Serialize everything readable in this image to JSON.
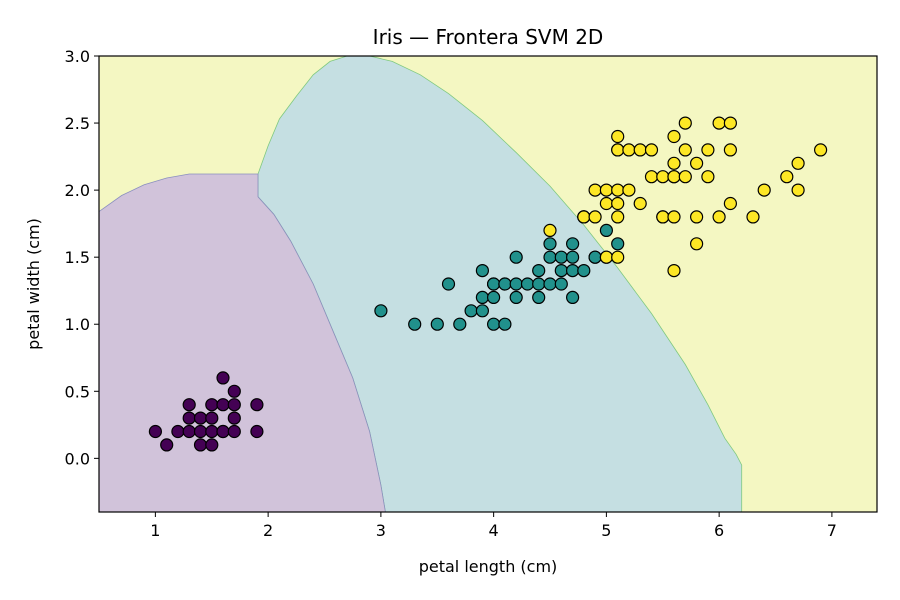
{
  "chart_data": {
    "type": "scatter",
    "title": "Iris — Frontera SVM 2D",
    "xlabel": "petal length (cm)",
    "ylabel": "petal width (cm)",
    "xlim": [
      0.5,
      7.4
    ],
    "ylim": [
      -0.4,
      3.0
    ],
    "xticks": [
      "1",
      "2",
      "3",
      "4",
      "5",
      "6",
      "7"
    ],
    "yticks": [
      "0.0",
      "0.5",
      "1.0",
      "1.5",
      "2.0",
      "2.5",
      "3.0"
    ],
    "grid": false,
    "legend": "none",
    "regions": [
      {
        "class": 0,
        "color": "#d1c3da"
      },
      {
        "class": 1,
        "color": "#c5dfe2"
      },
      {
        "class": 2,
        "color": "#f4f7c2"
      }
    ],
    "series": [
      {
        "class": 0,
        "color": "#440154",
        "x": [
          1.0,
          1.1,
          1.2,
          1.3,
          1.3,
          1.3,
          1.4,
          1.4,
          1.4,
          1.5,
          1.5,
          1.5,
          1.5,
          1.6,
          1.6,
          1.6,
          1.6,
          1.7,
          1.7,
          1.7,
          1.7,
          1.9,
          1.9
        ],
        "y": [
          0.2,
          0.1,
          0.2,
          0.2,
          0.3,
          0.4,
          0.1,
          0.2,
          0.3,
          0.1,
          0.2,
          0.3,
          0.4,
          0.2,
          0.4,
          0.6,
          0.2,
          0.2,
          0.3,
          0.4,
          0.5,
          0.2,
          0.4
        ]
      },
      {
        "class": 1,
        "color": "#21918c",
        "x": [
          3.0,
          3.3,
          3.5,
          3.6,
          3.7,
          3.8,
          3.9,
          3.9,
          3.9,
          4.0,
          4.0,
          4.0,
          4.0,
          4.1,
          4.1,
          4.1,
          4.2,
          4.2,
          4.2,
          4.3,
          4.4,
          4.4,
          4.4,
          4.5,
          4.5,
          4.5,
          4.6,
          4.6,
          4.6,
          4.7,
          4.7,
          4.7,
          4.7,
          4.8,
          4.8,
          4.9,
          4.9,
          5.0,
          5.1
        ],
        "y": [
          1.1,
          1.0,
          1.0,
          1.3,
          1.0,
          1.1,
          1.1,
          1.2,
          1.4,
          1.0,
          1.2,
          1.3,
          1.3,
          1.0,
          1.3,
          1.3,
          1.2,
          1.3,
          1.5,
          1.3,
          1.2,
          1.3,
          1.4,
          1.3,
          1.5,
          1.6,
          1.3,
          1.4,
          1.5,
          1.2,
          1.4,
          1.5,
          1.6,
          1.4,
          1.8,
          1.5,
          1.5,
          1.7,
          1.6
        ]
      },
      {
        "class": 2,
        "color": "#fde725",
        "x": [
          4.5,
          4.8,
          4.8,
          4.9,
          4.9,
          5.0,
          5.0,
          5.0,
          5.0,
          5.1,
          5.1,
          5.1,
          5.1,
          5.1,
          5.1,
          5.1,
          5.2,
          5.2,
          5.3,
          5.3,
          5.4,
          5.4,
          5.5,
          5.5,
          5.5,
          5.6,
          5.6,
          5.6,
          5.6,
          5.6,
          5.6,
          5.7,
          5.7,
          5.7,
          5.8,
          5.8,
          5.8,
          5.9,
          5.9,
          6.0,
          6.0,
          6.1,
          6.1,
          6.1,
          6.3,
          6.4,
          6.6,
          6.7,
          6.7,
          6.9
        ],
        "y": [
          1.7,
          1.8,
          1.8,
          2.0,
          1.8,
          2.0,
          1.9,
          1.5,
          1.5,
          2.4,
          2.3,
          2.0,
          1.9,
          1.8,
          1.5,
          2.3,
          2.3,
          2.0,
          2.3,
          1.9,
          2.1,
          2.3,
          1.8,
          2.1,
          1.8,
          2.4,
          2.2,
          2.1,
          1.8,
          1.4,
          2.1,
          2.5,
          2.3,
          2.1,
          2.2,
          1.8,
          1.6,
          2.3,
          2.1,
          2.5,
          1.8,
          2.5,
          2.3,
          1.9,
          1.8,
          2.0,
          2.1,
          2.2,
          2.0,
          2.3
        ]
      }
    ]
  }
}
